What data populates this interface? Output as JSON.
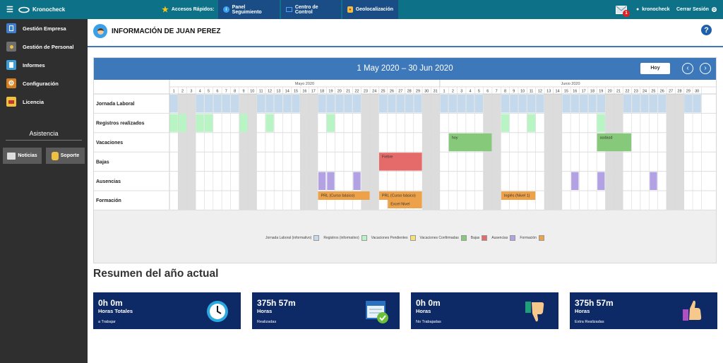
{
  "topbar": {
    "logo": "Kronocheck",
    "quick_access": "Accesos Rápidos:",
    "buttons": [
      {
        "label": "Panel Seguimiento",
        "icon": "info-icon"
      },
      {
        "label": "Centro de Control",
        "icon": "monitor-icon"
      },
      {
        "label": "Geolocalización",
        "icon": "map-pin-icon"
      }
    ],
    "mail_badge": "1",
    "user": "kronocheck",
    "logout": "Cerrar Sesión"
  },
  "sidebar": {
    "items": [
      {
        "label": "Gestión Empresa",
        "icon": "building-icon"
      },
      {
        "label": "Gestión de Personal",
        "icon": "person-icon"
      },
      {
        "label": "Informes",
        "icon": "report-icon"
      },
      {
        "label": "Configuración",
        "icon": "gear-icon"
      },
      {
        "label": "Licencia",
        "icon": "license-icon"
      }
    ],
    "section_title": "Asistencia",
    "tiles": [
      {
        "label": "Noticias",
        "icon": "news-icon"
      },
      {
        "label": "Soporte",
        "icon": "support-icon"
      }
    ]
  },
  "page": {
    "title": "INFORMACIÓN DE JUAN PEREZ",
    "help": "?"
  },
  "calendar": {
    "range": "1 May 2020 – 30 Jun 2020",
    "today_button": "Hoy",
    "months": [
      {
        "label": "Mayo 2020",
        "days": 31
      },
      {
        "label": "Junio 2020",
        "days": 30
      }
    ],
    "first_weekday_offset": 4,
    "rows": [
      "Jornada Laboral",
      "Registros realizados",
      "Vacaciones",
      "Bajas",
      "Ausencias",
      "Formación"
    ],
    "jornada_days": [
      1,
      4,
      5,
      6,
      7,
      8,
      11,
      12,
      13,
      14,
      15,
      18,
      19,
      20,
      21,
      22,
      25,
      26,
      27,
      28,
      29,
      32,
      33,
      34,
      35,
      36,
      39,
      40,
      41,
      42,
      43,
      46,
      47,
      48,
      49,
      50,
      53,
      54,
      55,
      56,
      57,
      60,
      61
    ],
    "registros_days": [
      1,
      2,
      4,
      5,
      9,
      12,
      19,
      39,
      42,
      50
    ],
    "ausencias_days": [
      18,
      19,
      22,
      47,
      50,
      56
    ],
    "events": [
      {
        "row": 2,
        "start": 33,
        "end": 37,
        "label": "hoy",
        "kind": "vacaciones"
      },
      {
        "row": 2,
        "start": 50,
        "end": 53,
        "label": "asdasd",
        "kind": "vacaciones"
      },
      {
        "row": 3,
        "start": 25,
        "end": 29,
        "label": "Fiebre",
        "kind": "bajas"
      },
      {
        "row": 5,
        "start": 18,
        "end": 23,
        "label": "PRL (Curso básico)",
        "kind": "formacion"
      },
      {
        "row": 5,
        "start": 25,
        "end": 29,
        "label": "PRL (Curso básico)",
        "kind": "formacion"
      },
      {
        "row": 5,
        "start": 26,
        "end": 29,
        "label": "Excel Nivel",
        "kind": "formacion",
        "lane": 1
      },
      {
        "row": 5,
        "start": 39,
        "end": 42,
        "label": "Inglés (Nivel 1)",
        "kind": "formacion"
      }
    ],
    "legend": [
      {
        "label": "Jornada Laboral (informativo)",
        "color": "#c5d9ec"
      },
      {
        "label": "Registros (informativo)",
        "color": "#b9f5c4"
      },
      {
        "label": "Vacaciones Pendientes",
        "color": "#f5e07a"
      },
      {
        "label": "Vacaciones Confirmadas",
        "color": "#87c97a"
      },
      {
        "label": "Bajas",
        "color": "#e56a6a"
      },
      {
        "label": "Ausencias",
        "color": "#b3a2e3"
      },
      {
        "label": "Formación",
        "color": "#eda24a"
      }
    ],
    "colors": {
      "jornada": "#c5d9ec",
      "registros": "#b9f5c4",
      "weekend": "#dcdcdc",
      "vacaciones": "#87c97a",
      "bajas": "#e56a6a",
      "ausencias": "#b3a2e3",
      "formacion": "#eda24a"
    }
  },
  "summary": {
    "title": "Resumen del año actual",
    "cards": [
      {
        "value": "0h 0m",
        "label": "Horas Totales",
        "sub": "a Trabajar",
        "icon": "clock-icon"
      },
      {
        "value": "375h 57m",
        "label": "Horas",
        "sub": "Realizadas",
        "icon": "calendar-check-icon"
      },
      {
        "value": "0h 0m",
        "label": "Horas",
        "sub": "No Trabajadas",
        "icon": "thumbs-down-icon"
      },
      {
        "value": "375h 57m",
        "label": "Horas",
        "sub": "Extra Realizadas",
        "icon": "thumbs-up-icon"
      }
    ]
  }
}
